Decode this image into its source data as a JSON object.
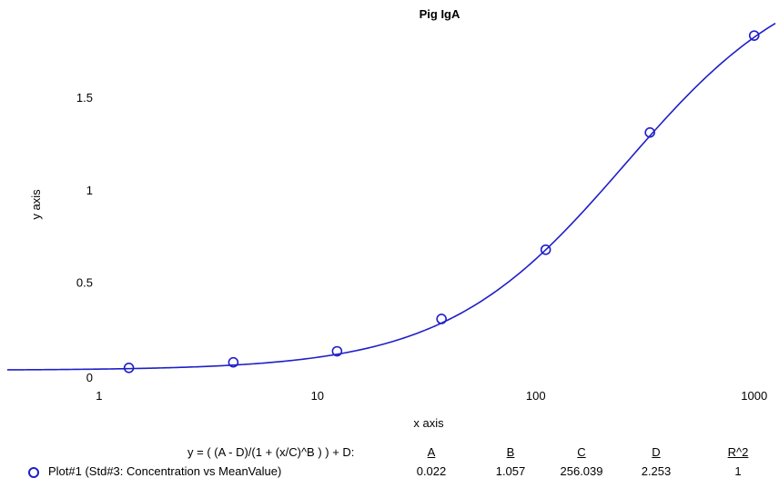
{
  "chart_data": {
    "type": "line",
    "title": "Pig IgA",
    "xlabel": "x axis",
    "ylabel": "y axis",
    "xscale": "log",
    "xlim": [
      0.38,
      1250
    ],
    "ylim": [
      -0.03,
      1.88
    ],
    "x_ticks": [
      "1",
      "10",
      "100",
      "1000"
    ],
    "y_ticks": [
      "0",
      "0.5",
      "1",
      "1.5"
    ],
    "grid": false,
    "series": [
      {
        "name": "Plot#1 (Std#3: Concentration vs MeanValue)",
        "marker": "circle",
        "points": [
          {
            "x": 1.37,
            "y": 0.035
          },
          {
            "x": 4.12,
            "y": 0.065
          },
          {
            "x": 12.3,
            "y": 0.125
          },
          {
            "x": 37.0,
            "y": 0.3
          },
          {
            "x": 111,
            "y": 0.675
          },
          {
            "x": 333,
            "y": 1.31
          },
          {
            "x": 1000,
            "y": 1.835
          }
        ]
      }
    ],
    "fit": {
      "equation": "y = ( (A - D)/(1 + (x/C)^B ) ) + D:",
      "A": 0.022,
      "B": 1.057,
      "C": 256.039,
      "D": 2.253
    },
    "colors": {
      "series": "#1f1fc8"
    }
  },
  "legend": {
    "equation": "y = ( (A - D)/(1 + (x/C)^B ) ) + D:",
    "headers": [
      "A",
      "B",
      "C",
      "D",
      "R^2"
    ],
    "series_label": "Plot#1 (Std#3: Concentration vs MeanValue)",
    "values": [
      "0.022",
      "1.057",
      "256.039",
      "2.253",
      "1"
    ]
  }
}
